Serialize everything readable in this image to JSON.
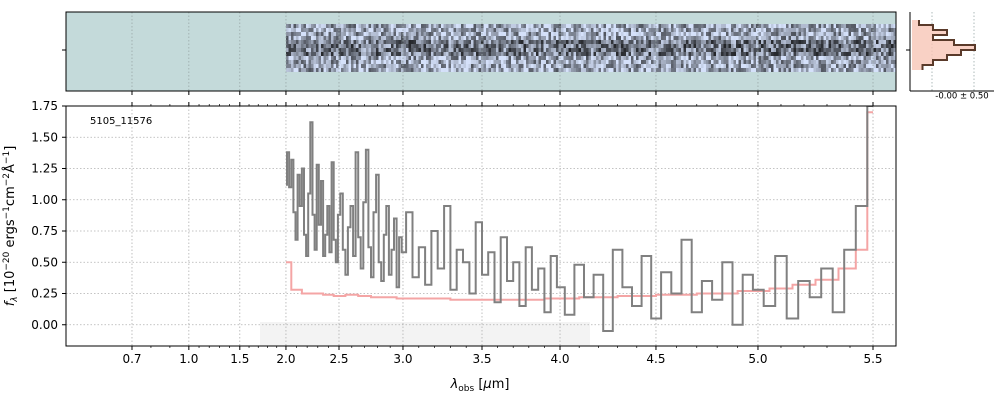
{
  "chart_data": {
    "type": "line",
    "object_label": "5105_11576",
    "xlabel": "λ_obs [μm]",
    "ylabel": "f_λ [10^-20 ergs^-1cm^-2Å^-1]",
    "xlim": [
      0.6,
      5.55
    ],
    "ylim": [
      -0.17,
      1.75
    ],
    "x_scale": "nonlinear (relative position)",
    "x_ticks": [
      "0.7",
      "1.0",
      "1.5",
      "2.0",
      "2.5",
      "3.0",
      "3.5",
      "4.0",
      "4.5",
      "5.0",
      "5.5"
    ],
    "y_ticks": [
      "0.00",
      "0.25",
      "0.50",
      "0.75",
      "1.00",
      "1.25",
      "1.50",
      "1.75"
    ],
    "grid": true,
    "colors": {
      "spectrum": "#808080",
      "error": "#f4a5a5",
      "model_overlay": "#c87a7a",
      "spectrum2d_bg": "#c4dada",
      "spectrum2d_dark": "#1a2540",
      "profile_line": "#5a3a2a",
      "profile_fill": "#f7c6b6",
      "mask": "#eeeeee"
    },
    "side_panel_label": "-0.00 ± 0.50",
    "series": [
      {
        "role": "flux",
        "x": [
          2.0,
          2.02,
          2.04,
          2.06,
          2.08,
          2.1,
          2.12,
          2.14,
          2.16,
          2.18,
          2.2,
          2.22,
          2.24,
          2.26,
          2.28,
          2.3,
          2.32,
          2.34,
          2.36,
          2.38,
          2.4,
          2.42,
          2.44,
          2.46,
          2.48,
          2.5,
          2.52,
          2.54,
          2.56,
          2.58,
          2.6,
          2.62,
          2.64,
          2.66,
          2.68,
          2.7,
          2.72,
          2.74,
          2.76,
          2.78,
          2.8,
          2.82,
          2.84,
          2.86,
          2.88,
          2.9,
          2.92,
          2.94,
          2.96,
          2.98,
          3.0,
          3.04,
          3.08,
          3.12,
          3.16,
          3.2,
          3.24,
          3.28,
          3.32,
          3.36,
          3.4,
          3.44,
          3.48,
          3.52,
          3.56,
          3.6,
          3.64,
          3.68,
          3.72,
          3.76,
          3.8,
          3.84,
          3.88,
          3.92,
          3.96,
          4.0,
          4.05,
          4.1,
          4.15,
          4.2,
          4.25,
          4.3,
          4.35,
          4.4,
          4.45,
          4.5,
          4.55,
          4.6,
          4.65,
          4.7,
          4.75,
          4.8,
          4.85,
          4.9,
          4.95,
          5.0,
          5.05,
          5.1,
          5.15,
          5.2,
          5.25,
          5.3,
          5.35,
          5.4,
          5.45,
          5.5
        ],
        "y": [
          1.12,
          1.38,
          1.1,
          1.32,
          0.9,
          0.68,
          1.2,
          0.95,
          1.25,
          0.72,
          0.55,
          1.05,
          1.62,
          0.88,
          0.6,
          1.28,
          0.8,
          1.15,
          0.55,
          0.72,
          0.95,
          0.58,
          1.3,
          0.68,
          0.5,
          0.88,
          1.05,
          0.6,
          0.4,
          0.78,
          0.95,
          0.55,
          1.38,
          0.7,
          0.45,
          0.98,
          1.4,
          0.62,
          0.38,
          0.9,
          1.2,
          0.5,
          0.35,
          0.72,
          0.95,
          0.4,
          0.6,
          0.85,
          0.3,
          0.7,
          0.58,
          0.9,
          0.38,
          0.62,
          0.32,
          0.75,
          0.45,
          0.95,
          0.28,
          0.6,
          0.5,
          0.25,
          0.82,
          0.4,
          0.58,
          0.18,
          0.7,
          0.35,
          0.5,
          0.15,
          0.62,
          0.28,
          0.45,
          0.1,
          0.55,
          0.3,
          0.08,
          0.48,
          0.22,
          0.4,
          -0.05,
          0.6,
          0.3,
          0.15,
          0.55,
          0.05,
          0.42,
          0.25,
          0.68,
          0.1,
          0.35,
          0.2,
          0.5,
          0.0,
          0.4,
          0.28,
          0.15,
          0.55,
          0.05,
          0.35,
          0.22,
          0.45,
          0.1,
          0.6,
          0.95,
          1.75
        ]
      },
      {
        "role": "error",
        "x": [
          2.0,
          2.1,
          2.2,
          2.3,
          2.4,
          2.5,
          2.6,
          2.7,
          2.8,
          2.9,
          3.0,
          3.2,
          3.4,
          3.6,
          3.8,
          4.0,
          4.2,
          4.4,
          4.6,
          4.8,
          5.0,
          5.1,
          5.2,
          5.3,
          5.4,
          5.45,
          5.5
        ],
        "y": [
          0.5,
          0.28,
          0.25,
          0.25,
          0.24,
          0.23,
          0.24,
          0.23,
          0.22,
          0.22,
          0.21,
          0.21,
          0.2,
          0.2,
          0.2,
          0.21,
          0.22,
          0.23,
          0.24,
          0.25,
          0.27,
          0.29,
          0.32,
          0.36,
          0.45,
          0.6,
          1.7
        ]
      }
    ],
    "profile": {
      "values": [
        0.1,
        0.3,
        0.5,
        0.3,
        0.6,
        0.9,
        0.7,
        0.5,
        0.3,
        0.15
      ]
    }
  }
}
